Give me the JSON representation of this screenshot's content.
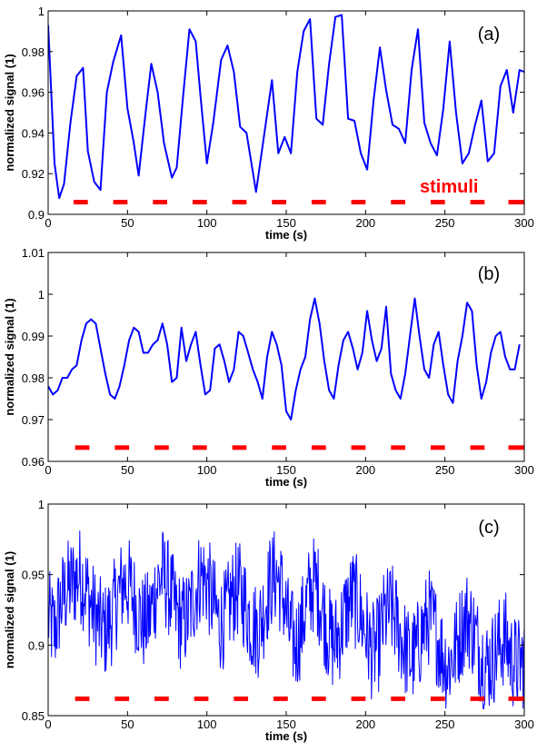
{
  "colors": {
    "series": "#0000ff",
    "stimuli": "#ff0000",
    "axes": "#000000"
  },
  "chart_data": [
    {
      "type": "line",
      "panel_label": "(a)",
      "xlabel": "time (s)",
      "ylabel": "normalized signal (1)",
      "xlim": [
        0,
        300
      ],
      "ylim": [
        0.9,
        1
      ],
      "xticks": [
        0,
        50,
        100,
        150,
        200,
        250,
        300
      ],
      "xtick_labels": [
        "0",
        "50",
        "100",
        "150",
        "200",
        "250",
        "300"
      ],
      "yticks": [
        0.9,
        0.92,
        0.94,
        0.96,
        0.98,
        1
      ],
      "ytick_labels": [
        "0.9",
        "0.92",
        "0.94",
        "0.96",
        "0.98",
        "1"
      ],
      "annotation": "stimuli",
      "series": [
        {
          "name": "signal",
          "x": [
            0,
            4,
            7,
            10,
            14,
            18,
            22,
            25,
            29,
            33,
            37,
            41,
            46,
            50,
            54,
            57,
            61,
            65,
            69,
            73,
            78,
            81,
            85,
            89,
            93,
            96,
            100,
            104,
            109,
            113,
            117,
            121,
            125,
            131,
            137,
            141,
            145,
            149,
            153,
            157,
            161,
            165,
            169,
            173,
            177,
            181,
            185,
            189,
            193,
            197,
            201,
            205,
            209,
            213,
            217,
            221,
            225,
            229,
            233,
            237,
            241,
            245,
            249,
            253,
            257,
            261,
            265,
            269,
            273,
            277,
            281,
            285,
            289,
            293,
            297,
            300
          ],
          "y": [
            0.993,
            0.925,
            0.908,
            0.915,
            0.945,
            0.968,
            0.972,
            0.931,
            0.916,
            0.912,
            0.96,
            0.975,
            0.988,
            0.952,
            0.935,
            0.919,
            0.947,
            0.974,
            0.96,
            0.935,
            0.918,
            0.923,
            0.958,
            0.991,
            0.985,
            0.958,
            0.925,
            0.945,
            0.976,
            0.983,
            0.97,
            0.943,
            0.94,
            0.911,
            0.944,
            0.966,
            0.93,
            0.938,
            0.93,
            0.97,
            0.99,
            0.996,
            0.947,
            0.944,
            0.974,
            0.997,
            0.998,
            0.947,
            0.946,
            0.93,
            0.922,
            0.956,
            0.982,
            0.961,
            0.944,
            0.942,
            0.935,
            0.971,
            0.991,
            0.945,
            0.935,
            0.929,
            0.952,
            0.985,
            0.95,
            0.925,
            0.93,
            0.944,
            0.956,
            0.926,
            0.93,
            0.963,
            0.971,
            0.95,
            0.971,
            0.97
          ]
        }
      ],
      "stimuli": [
        [
          16,
          25
        ],
        [
          41,
          50
        ],
        [
          66,
          75
        ],
        [
          91,
          100
        ],
        [
          116,
          125
        ],
        [
          141,
          150
        ],
        [
          166,
          175
        ],
        [
          191,
          200
        ],
        [
          216,
          225
        ],
        [
          241,
          250
        ],
        [
          266,
          275
        ],
        [
          290,
          300
        ]
      ],
      "stimuli_y": 0.906
    },
    {
      "type": "line",
      "panel_label": "(b)",
      "xlabel": "time (s)",
      "ylabel": "normalized signal (1)",
      "xlim": [
        0,
        300
      ],
      "ylim": [
        0.96,
        1.01
      ],
      "xticks": [
        0,
        50,
        100,
        150,
        200,
        250,
        300
      ],
      "xtick_labels": [
        "0",
        "50",
        "100",
        "150",
        "200",
        "250",
        "300"
      ],
      "yticks": [
        0.96,
        0.97,
        0.98,
        0.99,
        1,
        1.01
      ],
      "ytick_labels": [
        "0.96",
        "0.97",
        "0.98",
        "0.99",
        "1",
        "1.01"
      ],
      "series": [
        {
          "name": "signal",
          "x": [
            0,
            3,
            6,
            9,
            12,
            15,
            18,
            21,
            24,
            27,
            30,
            33,
            36,
            39,
            42,
            45,
            48,
            51,
            54,
            57,
            60,
            63,
            66,
            69,
            72,
            75,
            78,
            81,
            84,
            87,
            90,
            93,
            96,
            99,
            102,
            105,
            108,
            111,
            114,
            117,
            120,
            123,
            126,
            129,
            132,
            135,
            138,
            141,
            144,
            147,
            150,
            153,
            156,
            159,
            162,
            165,
            168,
            171,
            174,
            177,
            180,
            183,
            186,
            189,
            192,
            195,
            198,
            201,
            204,
            207,
            210,
            213,
            216,
            219,
            222,
            225,
            228,
            231,
            234,
            237,
            240,
            243,
            246,
            249,
            252,
            255,
            258,
            261,
            264,
            267,
            270,
            273,
            276,
            279,
            282,
            285,
            288,
            291,
            294,
            297
          ],
          "y": [
            0.978,
            0.976,
            0.977,
            0.98,
            0.98,
            0.982,
            0.983,
            0.989,
            0.993,
            0.994,
            0.993,
            0.987,
            0.981,
            0.976,
            0.975,
            0.978,
            0.983,
            0.989,
            0.992,
            0.991,
            0.986,
            0.986,
            0.988,
            0.989,
            0.993,
            0.988,
            0.979,
            0.98,
            0.992,
            0.984,
            0.988,
            0.991,
            0.983,
            0.976,
            0.977,
            0.987,
            0.988,
            0.984,
            0.979,
            0.982,
            0.991,
            0.99,
            0.986,
            0.982,
            0.979,
            0.975,
            0.985,
            0.991,
            0.988,
            0.983,
            0.972,
            0.97,
            0.977,
            0.982,
            0.985,
            0.994,
            0.999,
            0.993,
            0.984,
            0.977,
            0.975,
            0.983,
            0.989,
            0.991,
            0.987,
            0.982,
            0.986,
            0.996,
            0.989,
            0.984,
            0.987,
            0.997,
            0.981,
            0.977,
            0.975,
            0.981,
            0.99,
            0.999,
            0.99,
            0.982,
            0.98,
            0.988,
            0.991,
            0.983,
            0.976,
            0.974,
            0.984,
            0.99,
            0.998,
            0.996,
            0.983,
            0.975,
            0.979,
            0.986,
            0.99,
            0.991,
            0.985,
            0.982,
            0.982,
            0.988
          ]
        }
      ],
      "stimuli": [
        [
          17,
          26
        ],
        [
          42,
          51
        ],
        [
          67,
          76
        ],
        [
          91,
          100
        ],
        [
          116,
          125
        ],
        [
          141,
          150
        ],
        [
          166,
          175
        ],
        [
          191,
          200
        ],
        [
          216,
          225
        ],
        [
          241,
          250
        ],
        [
          266,
          275
        ],
        [
          290,
          300
        ]
      ],
      "stimuli_y": 0.9633
    },
    {
      "type": "line",
      "panel_label": "(c)",
      "xlabel": "time (s)",
      "ylabel": "normalized signal (1)",
      "xlim": [
        0,
        300
      ],
      "ylim": [
        0.85,
        1
      ],
      "xticks": [
        0,
        50,
        100,
        150,
        200,
        250,
        300
      ],
      "xtick_labels": [
        "0",
        "50",
        "100",
        "150",
        "200",
        "250",
        "300"
      ],
      "yticks": [
        0.85,
        0.9,
        0.95,
        1
      ],
      "ytick_labels": [
        "0.85",
        "0.9",
        "0.95",
        "1"
      ],
      "series": [
        {
          "name": "signal",
          "x": [
            0,
            4,
            8,
            12,
            16,
            20,
            24,
            28,
            32,
            36,
            40,
            44,
            48,
            52,
            56,
            60,
            64,
            68,
            72,
            76,
            80,
            84,
            88,
            92,
            96,
            100,
            104,
            108,
            112,
            116,
            120,
            124,
            128,
            132,
            136,
            140,
            144,
            148,
            152,
            156,
            160,
            164,
            168,
            172,
            176,
            180,
            184,
            188,
            192,
            196,
            200,
            204,
            208,
            212,
            216,
            220,
            224,
            228,
            232,
            236,
            240,
            244,
            248,
            252,
            256,
            260,
            264,
            268,
            272,
            276,
            280,
            284,
            288,
            292,
            296,
            300
          ],
          "y": [
            0.92,
            0.91,
            0.93,
            0.94,
            0.945,
            0.95,
            0.94,
            0.925,
            0.915,
            0.91,
            0.92,
            0.935,
            0.945,
            0.94,
            0.925,
            0.915,
            0.92,
            0.94,
            0.95,
            0.94,
            0.925,
            0.915,
            0.92,
            0.935,
            0.95,
            0.945,
            0.93,
            0.915,
            0.92,
            0.935,
            0.94,
            0.93,
            0.915,
            0.91,
            0.925,
            0.945,
            0.95,
            0.935,
            0.91,
            0.9,
            0.915,
            0.935,
            0.945,
            0.93,
            0.91,
            0.9,
            0.91,
            0.925,
            0.935,
            0.925,
            0.91,
            0.895,
            0.9,
            0.92,
            0.925,
            0.915,
            0.9,
            0.89,
            0.895,
            0.91,
            0.92,
            0.91,
            0.895,
            0.885,
            0.895,
            0.91,
            0.92,
            0.91,
            0.895,
            0.885,
            0.89,
            0.9,
            0.905,
            0.89,
            0.885,
            0.89
          ]
        }
      ],
      "noise_amplitude": 0.035,
      "stimuli": [
        [
          17,
          26
        ],
        [
          42,
          51
        ],
        [
          67,
          76
        ],
        [
          92,
          101
        ],
        [
          117,
          126
        ],
        [
          142,
          151
        ],
        [
          166,
          175
        ],
        [
          191,
          200
        ],
        [
          216,
          225
        ],
        [
          241,
          250
        ],
        [
          266,
          275
        ],
        [
          290,
          300
        ]
      ],
      "stimuli_y": 0.862
    }
  ]
}
